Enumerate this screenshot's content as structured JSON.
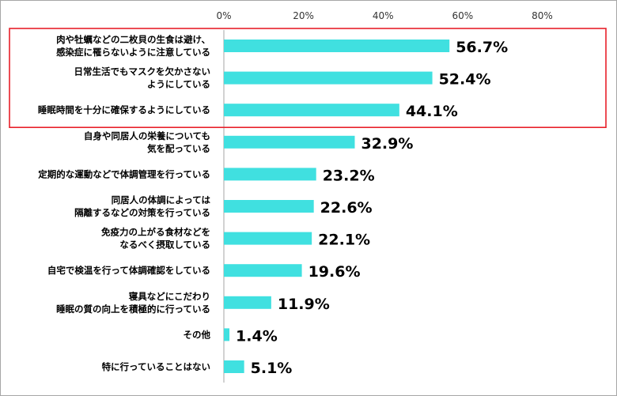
{
  "chart_data": {
    "type": "bar",
    "orientation": "horizontal",
    "categories": [
      [
        "肉や牡蠣などの二枚貝の生食は避け、",
        "感染症に罹らないように注意している"
      ],
      [
        "日常生活でもマスクを欠かさない",
        "ようにしている"
      ],
      [
        "睡眠時間を十分に確保するようにしている"
      ],
      [
        "自身や同居人の栄養についても",
        "気を配っている"
      ],
      [
        "定期的な運動などで体調管理を行っている"
      ],
      [
        "同居人の体調によっては",
        "隔離するなどの対策を行っている"
      ],
      [
        "免疫力の上がる食材などを",
        "なるべく摂取している"
      ],
      [
        "自宅で検温を行って体調確認をしている"
      ],
      [
        "寝具などにこだわり",
        "睡眠の質の向上を積極的に行っている"
      ],
      [
        "その他"
      ],
      [
        "特に行っていることはない"
      ]
    ],
    "values": [
      56.7,
      52.4,
      44.1,
      32.9,
      23.2,
      22.6,
      22.1,
      19.6,
      11.9,
      1.4,
      5.1
    ],
    "value_labels": [
      "56.7%",
      "52.4%",
      "44.1%",
      "32.9%",
      "23.2%",
      "22.6%",
      "22.1%",
      "19.6%",
      "11.9%",
      "1.4%",
      "5.1%"
    ],
    "x_ticks": [
      "0%",
      "20%",
      "40%",
      "60%",
      "80%"
    ],
    "xlim": [
      0,
      80
    ],
    "highlight_indices": [
      0,
      1,
      2
    ],
    "grid": false,
    "colors": {
      "bar": "#40e0e0",
      "highlight_box": "#e8202a",
      "axis": "#a6a6a6",
      "text": "#000000",
      "tick_text": "#333333"
    }
  }
}
